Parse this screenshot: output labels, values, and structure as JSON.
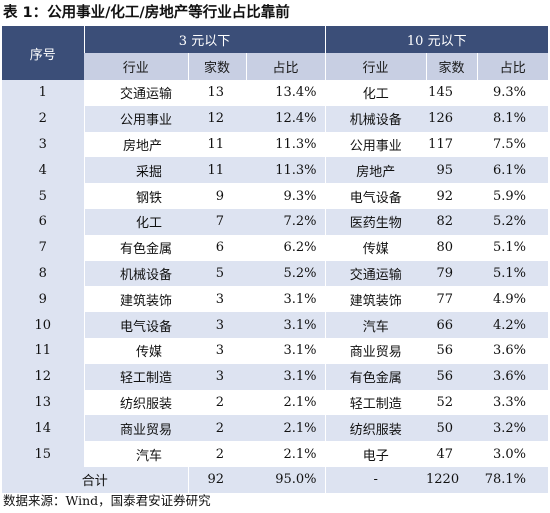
{
  "title": "表 1：公用事业/化工/房地产等行业占比靠前",
  "headers": {
    "index": "序号",
    "group_left": "3 元以下",
    "group_right": "10 元以下",
    "industry": "行业",
    "count": "家数",
    "ratio": "占比"
  },
  "rows": [
    {
      "n": "1",
      "l_ind": "交通运输",
      "l_cnt": "13",
      "l_pct": "13.4%",
      "r_ind": "化工",
      "r_cnt": "145",
      "r_pct": "9.3%"
    },
    {
      "n": "2",
      "l_ind": "公用事业",
      "l_cnt": "12",
      "l_pct": "12.4%",
      "r_ind": "机械设备",
      "r_cnt": "126",
      "r_pct": "8.1%"
    },
    {
      "n": "3",
      "l_ind": "房地产",
      "l_cnt": "11",
      "l_pct": "11.3%",
      "r_ind": "公用事业",
      "r_cnt": "117",
      "r_pct": "7.5%"
    },
    {
      "n": "4",
      "l_ind": "采掘",
      "l_cnt": "11",
      "l_pct": "11.3%",
      "r_ind": "房地产",
      "r_cnt": "95",
      "r_pct": "6.1%"
    },
    {
      "n": "5",
      "l_ind": "钢铁",
      "l_cnt": "9",
      "l_pct": "9.3%",
      "r_ind": "电气设备",
      "r_cnt": "92",
      "r_pct": "5.9%"
    },
    {
      "n": "6",
      "l_ind": "化工",
      "l_cnt": "7",
      "l_pct": "7.2%",
      "r_ind": "医药生物",
      "r_cnt": "82",
      "r_pct": "5.2%"
    },
    {
      "n": "7",
      "l_ind": "有色金属",
      "l_cnt": "6",
      "l_pct": "6.2%",
      "r_ind": "传媒",
      "r_cnt": "80",
      "r_pct": "5.1%"
    },
    {
      "n": "8",
      "l_ind": "机械设备",
      "l_cnt": "5",
      "l_pct": "5.2%",
      "r_ind": "交通运输",
      "r_cnt": "79",
      "r_pct": "5.1%"
    },
    {
      "n": "9",
      "l_ind": "建筑装饰",
      "l_cnt": "3",
      "l_pct": "3.1%",
      "r_ind": "建筑装饰",
      "r_cnt": "77",
      "r_pct": "4.9%"
    },
    {
      "n": "10",
      "l_ind": "电气设备",
      "l_cnt": "3",
      "l_pct": "3.1%",
      "r_ind": "汽车",
      "r_cnt": "66",
      "r_pct": "4.2%"
    },
    {
      "n": "11",
      "l_ind": "传媒",
      "l_cnt": "3",
      "l_pct": "3.1%",
      "r_ind": "商业贸易",
      "r_cnt": "56",
      "r_pct": "3.6%"
    },
    {
      "n": "12",
      "l_ind": "轻工制造",
      "l_cnt": "3",
      "l_pct": "3.1%",
      "r_ind": "有色金属",
      "r_cnt": "56",
      "r_pct": "3.6%"
    },
    {
      "n": "13",
      "l_ind": "纺织服装",
      "l_cnt": "2",
      "l_pct": "2.1%",
      "r_ind": "轻工制造",
      "r_cnt": "52",
      "r_pct": "3.3%"
    },
    {
      "n": "14",
      "l_ind": "商业贸易",
      "l_cnt": "2",
      "l_pct": "2.1%",
      "r_ind": "纺织服装",
      "r_cnt": "50",
      "r_pct": "3.2%"
    },
    {
      "n": "15",
      "l_ind": "汽车",
      "l_cnt": "2",
      "l_pct": "2.1%",
      "r_ind": "电子",
      "r_cnt": "47",
      "r_pct": "3.0%"
    }
  ],
  "total": {
    "label": "合计",
    "l_cnt": "92",
    "l_pct": "95.0%",
    "r_ind": "-",
    "r_cnt": "1220",
    "r_pct": "78.1%"
  },
  "source": "数据来源：Wind，国泰君安证券研究",
  "colors": {
    "header_dark": "#3b4e78",
    "header_light": "#c8cfe3",
    "row_stripe": "#dde3f1"
  }
}
